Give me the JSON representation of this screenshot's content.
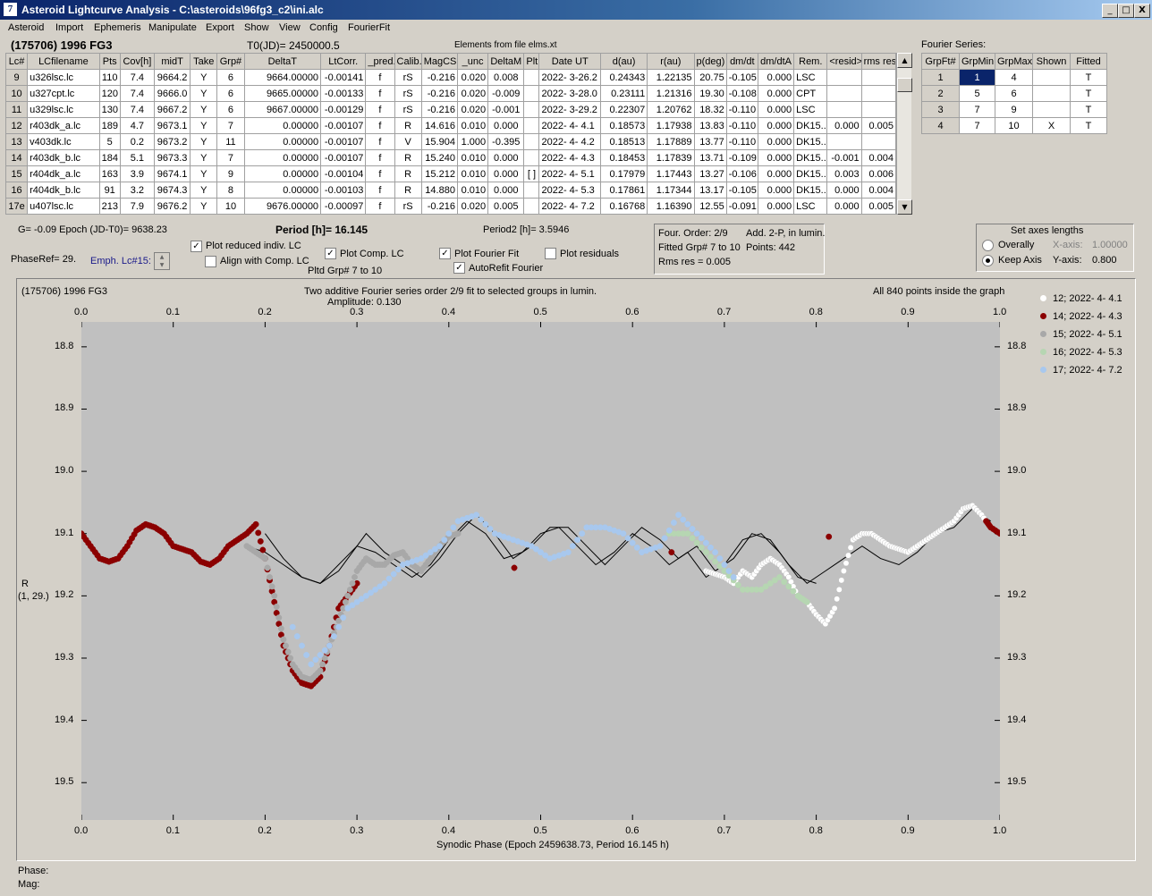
{
  "window": {
    "title": "Asteroid Lightcurve Analysis - C:\\asteroids\\96fg3_c2\\ini.alc",
    "icon_text": "7",
    "min": "_",
    "max": "□",
    "close": "X"
  },
  "menu": [
    "Asteroid",
    "Import",
    "Ephemeris",
    "Manipulate",
    "Export",
    "Show",
    "View",
    "Config",
    "FourierFit"
  ],
  "header": {
    "asteroid": "(175706) 1996 FG3",
    "t0": "T0(JD)= 2450000.5",
    "elements": "Elements from file elms.xt",
    "fourier_label": "Fourier Series:"
  },
  "lc_table": {
    "columns": [
      "Lc#",
      "LCfilename",
      "Pts",
      "Cov[h]",
      "midT",
      "Take",
      "Grp#",
      "DeltaT",
      "LtCorr.",
      "_pred.",
      "Calib.",
      "MagCS",
      "_unc",
      "DeltaM",
      "Plt",
      "Date UT",
      "d(au)",
      "r(au)",
      "p(deg)",
      "dm/dt",
      "dm/dtA",
      "Rem.",
      "<resid>",
      "rms res"
    ],
    "rows": [
      [
        "9",
        "u326lsc.lc",
        "110",
        "7.4",
        "9664.2",
        "Y",
        "6",
        "9664.00000",
        "-0.00141",
        "f",
        "rS",
        "-0.216",
        "0.020",
        "0.008",
        "",
        "2022- 3-26.2",
        "0.24343",
        "1.22135",
        "20.75",
        "-0.105",
        "0.000",
        "LSC",
        "",
        ""
      ],
      [
        "10",
        "u327cpt.lc",
        "120",
        "7.4",
        "9666.0",
        "Y",
        "6",
        "9665.00000",
        "-0.00133",
        "f",
        "rS",
        "-0.216",
        "0.020",
        "-0.009",
        "",
        "2022- 3-28.0",
        "0.23111",
        "1.21316",
        "19.30",
        "-0.108",
        "0.000",
        "CPT",
        "",
        ""
      ],
      [
        "11",
        "u329lsc.lc",
        "130",
        "7.4",
        "9667.2",
        "Y",
        "6",
        "9667.00000",
        "-0.00129",
        "f",
        "rS",
        "-0.216",
        "0.020",
        "-0.001",
        "",
        "2022- 3-29.2",
        "0.22307",
        "1.20762",
        "18.32",
        "-0.110",
        "0.000",
        "LSC",
        "",
        ""
      ],
      [
        "12",
        "r403dk_a.lc",
        "189",
        "4.7",
        "9673.1",
        "Y",
        "7",
        "0.00000",
        "-0.00107",
        "f",
        "R",
        "14.616",
        "0.010",
        "0.000",
        "",
        "2022- 4- 4.1",
        "0.18573",
        "1.17938",
        "13.83",
        "-0.110",
        "0.000",
        "DK15..",
        "0.000",
        "0.005"
      ],
      [
        "13",
        "v403dk.lc",
        "5",
        "0.2",
        "9673.2",
        "Y",
        "11",
        "0.00000",
        "-0.00107",
        "f",
        "V",
        "15.904",
        "1.000",
        "-0.395",
        "",
        "2022- 4- 4.2",
        "0.18513",
        "1.17889",
        "13.77",
        "-0.110",
        "0.000",
        "DK15..",
        "",
        ""
      ],
      [
        "14",
        "r403dk_b.lc",
        "184",
        "5.1",
        "9673.3",
        "Y",
        "7",
        "0.00000",
        "-0.00107",
        "f",
        "R",
        "15.240",
        "0.010",
        "0.000",
        "",
        "2022- 4- 4.3",
        "0.18453",
        "1.17839",
        "13.71",
        "-0.109",
        "0.000",
        "DK15..",
        "-0.001",
        "0.004"
      ],
      [
        "15",
        "r404dk_a.lc",
        "163",
        "3.9",
        "9674.1",
        "Y",
        "9",
        "0.00000",
        "-0.00104",
        "f",
        "R",
        "15.212",
        "0.010",
        "0.000",
        "[ ]",
        "2022- 4- 5.1",
        "0.17979",
        "1.17443",
        "13.27",
        "-0.106",
        "0.000",
        "DK15..",
        "0.003",
        "0.006"
      ],
      [
        "16",
        "r404dk_b.lc",
        "91",
        "3.2",
        "9674.3",
        "Y",
        "8",
        "0.00000",
        "-0.00103",
        "f",
        "R",
        "14.880",
        "0.010",
        "0.000",
        "",
        "2022- 4- 5.3",
        "0.17861",
        "1.17344",
        "13.17",
        "-0.105",
        "0.000",
        "DK15..",
        "0.000",
        "0.004"
      ],
      [
        "17e",
        "u407lsc.lc",
        "213",
        "7.9",
        "9676.2",
        "Y",
        "10",
        "9676.00000",
        "-0.00097",
        "f",
        "rS",
        "-0.216",
        "0.020",
        "0.005",
        "",
        "2022- 4- 7.2",
        "0.16768",
        "1.16390",
        "12.55",
        "-0.091",
        "0.000",
        "LSC",
        "0.000",
        "0.005"
      ]
    ]
  },
  "fourier_table": {
    "columns": [
      "GrpFt#",
      "GrpMin",
      "GrpMax",
      "Shown",
      "Fitted"
    ],
    "rows": [
      [
        "1",
        "1",
        "4",
        "",
        "T"
      ],
      [
        "2",
        "5",
        "6",
        "",
        "T"
      ],
      [
        "3",
        "7",
        "9",
        "",
        "T"
      ],
      [
        "4",
        "7",
        "10",
        "X",
        "T"
      ]
    ]
  },
  "controls": {
    "g_epoch": "G= -0.09   Epoch (JD-T0)= 9638.23",
    "period": "Period [h]= 16.145",
    "period2": "Period2 [h]= 3.5946",
    "phaseref": "PhaseRef= 29.",
    "emph": "Emph. Lc#15:",
    "plot_reduced": "Plot reduced indiv. LC",
    "align_comp": "Align with Comp. LC",
    "plot_comp": "Plot Comp. LC",
    "pltd_grp": "Pltd Grp#  7   to   10",
    "plot_fourier": "Plot Fourier Fit",
    "autorefit": "AutoRefit Fourier",
    "plot_residuals": "Plot residuals",
    "check_mark": "✓"
  },
  "fit_info": {
    "order": "Four. Order:  2/9",
    "add": "Add. 2-P, in lumin.",
    "fitted": "Fitted Grp# 7 to 10",
    "points": "Points: 442",
    "rms": "Rms res      = 0.005"
  },
  "axes_box": {
    "title": "Set axes lengths",
    "overally": "Overally",
    "keep": "Keep Axis",
    "xaxis_label": "X-axis:",
    "xaxis_value": "1.00000",
    "yaxis_label": "Y-axis:",
    "yaxis_value": "0.800"
  },
  "chart_data": {
    "type": "scatter",
    "title": "Two additive Fourier series order 2/9 fit to selected groups in lumin.",
    "subtitle": "Amplitude: 0.130",
    "top_left": "(175706) 1996 FG3",
    "top_right": "All 840 points inside the graph",
    "xlabel": "Synodic Phase (Epoch 2459638.73, Period 16.145 h)",
    "ylabel": "R",
    "ylabel2": "(1, 29.)",
    "xlim": [
      0,
      1
    ],
    "ylim": [
      19.56,
      18.76
    ],
    "y_inverted": true,
    "xticks": [
      "0.0",
      "0.1",
      "0.2",
      "0.3",
      "0.4",
      "0.5",
      "0.6",
      "0.7",
      "0.8",
      "0.9",
      "1.0"
    ],
    "yticks": [
      "18.8",
      "18.9",
      "19.0",
      "19.1",
      "19.2",
      "19.3",
      "19.4",
      "19.5"
    ],
    "legend_position": "right",
    "legend": [
      {
        "name": "12; 2022- 4- 4.1",
        "color": "#ffffff"
      },
      {
        "name": "14; 2022- 4- 4.3",
        "color": "#8b0000"
      },
      {
        "name": "15; 2022- 4- 5.1",
        "color": "#a8a8a8"
      },
      {
        "name": "16; 2022- 4- 5.3",
        "color": "#b6d6b2"
      },
      {
        "name": "17; 2022- 4- 7.2",
        "color": "#a8c8ee"
      }
    ],
    "series": [
      {
        "name": "12; 2022- 4- 4.1",
        "color": "#ffffff",
        "x": [
          0.68,
          0.69,
          0.7,
          0.71,
          0.72,
          0.73,
          0.74,
          0.75,
          0.76,
          0.77,
          0.78,
          0.79,
          0.8,
          0.81,
          0.82,
          0.83,
          0.84,
          0.85,
          0.86,
          0.87,
          0.88,
          0.89,
          0.9,
          0.91,
          0.92,
          0.93,
          0.94,
          0.95,
          0.96,
          0.97,
          0.98,
          0.99
        ],
        "y": [
          19.16,
          19.165,
          19.17,
          19.18,
          19.16,
          19.17,
          19.15,
          19.14,
          19.15,
          19.17,
          19.2,
          19.21,
          19.23,
          19.245,
          19.22,
          19.16,
          19.11,
          19.1,
          19.1,
          19.11,
          19.12,
          19.125,
          19.13,
          19.12,
          19.11,
          19.1,
          19.09,
          19.08,
          19.06,
          19.055,
          19.07,
          19.09
        ]
      },
      {
        "name": "14; 2022- 4- 4.3",
        "color": "#8b0000",
        "x": [
          0.0,
          0.01,
          0.02,
          0.03,
          0.04,
          0.05,
          0.06,
          0.07,
          0.08,
          0.09,
          0.1,
          0.11,
          0.12,
          0.13,
          0.14,
          0.15,
          0.16,
          0.17,
          0.18,
          0.19,
          0.2,
          0.21,
          0.22,
          0.23,
          0.24,
          0.25,
          0.26,
          0.27,
          0.28,
          0.29,
          0.3,
          0.985,
          0.99,
          1.0
        ],
        "y": [
          19.1,
          19.12,
          19.14,
          19.145,
          19.14,
          19.12,
          19.095,
          19.085,
          19.09,
          19.1,
          19.12,
          19.125,
          19.13,
          19.145,
          19.15,
          19.14,
          19.12,
          19.11,
          19.1,
          19.085,
          19.14,
          19.21,
          19.28,
          19.32,
          19.34,
          19.345,
          19.33,
          19.28,
          19.22,
          19.2,
          19.18,
          19.08,
          19.09,
          19.1
        ]
      },
      {
        "name": "15; 2022- 4- 5.1",
        "color": "#a8a8a8",
        "x": [
          0.18,
          0.19,
          0.2,
          0.21,
          0.22,
          0.23,
          0.24,
          0.25,
          0.26,
          0.27,
          0.28,
          0.29,
          0.3,
          0.31,
          0.32,
          0.33,
          0.34,
          0.35,
          0.36,
          0.37,
          0.38,
          0.39,
          0.4,
          0.41
        ],
        "y": [
          19.12,
          19.13,
          19.14,
          19.2,
          19.27,
          19.31,
          19.33,
          19.335,
          19.32,
          19.28,
          19.24,
          19.2,
          19.16,
          19.14,
          19.15,
          19.15,
          19.135,
          19.13,
          19.15,
          19.16,
          19.14,
          19.12,
          19.105,
          19.1
        ]
      },
      {
        "name": "16; 2022- 4- 5.3",
        "color": "#b6d6b2",
        "x": [
          0.64,
          0.66,
          0.68,
          0.7,
          0.72,
          0.74,
          0.76,
          0.78,
          0.79
        ],
        "y": [
          19.1,
          19.1,
          19.13,
          19.16,
          19.19,
          19.19,
          19.17,
          19.2,
          19.21
        ]
      },
      {
        "name": "17; 2022- 4- 7.2",
        "color": "#a8c8ee",
        "x": [
          0.23,
          0.25,
          0.27,
          0.29,
          0.31,
          0.33,
          0.35,
          0.37,
          0.39,
          0.41,
          0.43,
          0.45,
          0.47,
          0.49,
          0.51,
          0.53,
          0.55,
          0.57,
          0.59,
          0.61,
          0.63,
          0.65,
          0.67,
          0.69,
          0.71
        ],
        "y": [
          19.25,
          19.31,
          19.28,
          19.22,
          19.2,
          19.18,
          19.15,
          19.14,
          19.12,
          19.08,
          19.07,
          19.1,
          19.11,
          19.12,
          19.14,
          19.13,
          19.09,
          19.09,
          19.1,
          19.13,
          19.12,
          19.07,
          19.1,
          19.13,
          19.17
        ]
      }
    ],
    "fit_lines": [
      {
        "x": [
          0.18,
          0.2,
          0.22,
          0.24,
          0.26,
          0.28,
          0.3,
          0.31,
          0.33,
          0.35,
          0.37,
          0.39,
          0.41,
          0.43,
          0.45,
          0.47,
          0.49,
          0.51,
          0.53,
          0.55,
          0.57,
          0.59,
          0.61,
          0.63,
          0.65,
          0.67,
          0.69,
          0.71,
          0.73,
          0.75,
          0.77,
          0.79,
          0.81,
          0.83,
          0.85,
          0.87,
          0.89,
          0.91,
          0.93,
          0.95,
          0.97,
          0.99
        ],
        "y": [
          19.12,
          19.13,
          19.15,
          19.17,
          19.18,
          19.16,
          19.12,
          19.1,
          19.13,
          19.15,
          19.17,
          19.14,
          19.1,
          19.07,
          19.1,
          19.14,
          19.12,
          19.09,
          19.09,
          19.12,
          19.15,
          19.12,
          19.09,
          19.11,
          19.14,
          19.12,
          19.16,
          19.14,
          19.1,
          19.11,
          19.15,
          19.18,
          19.16,
          19.14,
          19.12,
          19.14,
          19.15,
          19.13,
          19.1,
          19.09,
          19.06,
          19.08
        ]
      },
      {
        "x": [
          0.2,
          0.22,
          0.24,
          0.26,
          0.28,
          0.3,
          0.32,
          0.34,
          0.36,
          0.38,
          0.4,
          0.42,
          0.44,
          0.46,
          0.48,
          0.5,
          0.52,
          0.54,
          0.56,
          0.58,
          0.6,
          0.62,
          0.64,
          0.66,
          0.68,
          0.7,
          0.72,
          0.74,
          0.76,
          0.78,
          0.8
        ],
        "y": [
          19.1,
          19.14,
          19.17,
          19.18,
          19.15,
          19.12,
          19.13,
          19.15,
          19.17,
          19.15,
          19.11,
          19.08,
          19.1,
          19.14,
          19.13,
          19.1,
          19.09,
          19.12,
          19.15,
          19.13,
          19.1,
          19.12,
          19.15,
          19.13,
          19.17,
          19.15,
          19.11,
          19.1,
          19.13,
          19.17,
          19.18
        ]
      }
    ]
  },
  "status": {
    "phase": "Phase:",
    "mag": "Mag:"
  }
}
